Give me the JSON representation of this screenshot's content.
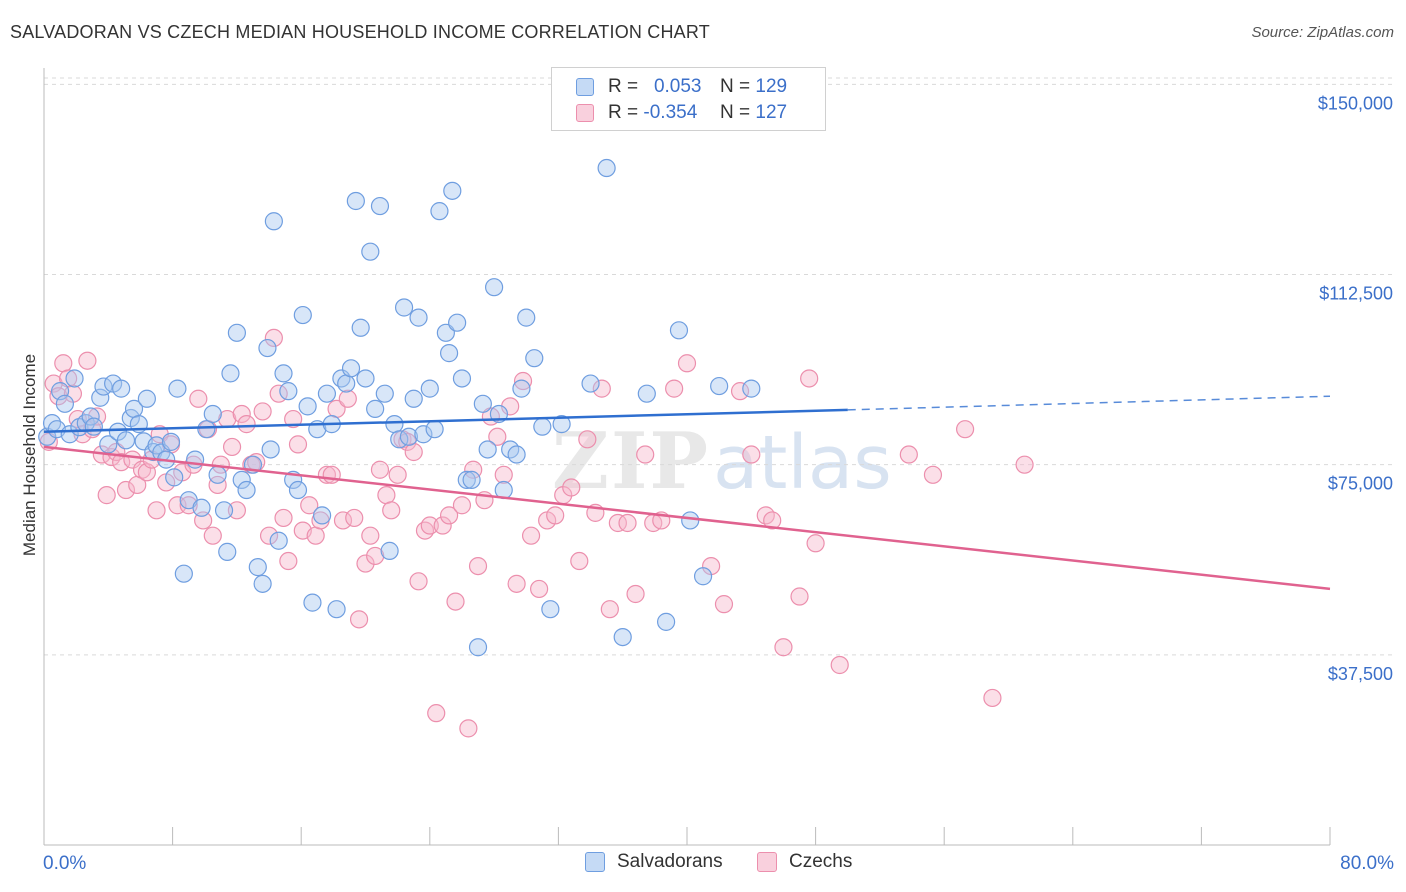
{
  "header": {
    "title": "SALVADORAN VS CZECH MEDIAN HOUSEHOLD INCOME CORRELATION CHART",
    "source": "Source: ZipAtlas.com"
  },
  "legend": {
    "rows": [
      {
        "r_label": "R =",
        "r_value": "0.053",
        "n_label": "N =",
        "n_value": "129"
      },
      {
        "r_label": "R =",
        "r_value": "-0.354",
        "n_label": "N =",
        "n_value": "127"
      }
    ]
  },
  "colors": {
    "salvadorans_fill": "#a9c8f0",
    "salvadorans_stroke": "#6f9ee0",
    "salvadorans_line": "#2f6fd0",
    "czechs_fill": "#f6b9cc",
    "czechs_stroke": "#ec8fad",
    "czechs_line": "#e0628f",
    "tick_text": "#3b6fc9",
    "grid": "#d9d9d9"
  },
  "chart_data": {
    "type": "scatter",
    "title": "SALVADORAN VS CZECH MEDIAN HOUSEHOLD INCOME CORRELATION CHART",
    "xlabel": "",
    "ylabel": "Median Household Income",
    "xlim": [
      0,
      80
    ],
    "ylim": [
      0,
      155000
    ],
    "x_tick_labels": [
      "0.0%",
      "80.0%"
    ],
    "y_ticks": [
      {
        "value": 37500,
        "label": "$37,500"
      },
      {
        "value": 75000,
        "label": "$75,000"
      },
      {
        "value": 112500,
        "label": "$112,500"
      },
      {
        "value": 150000,
        "label": "$150,000"
      }
    ],
    "grid": true,
    "legend_position": "top-center",
    "watermark": "ZIPatlas",
    "series": [
      {
        "name": "Salvadorans",
        "r": 0.053,
        "n": 129,
        "trend": {
          "x0": 0,
          "y0": 81500,
          "x1": 50,
          "y1": 85800,
          "dashed_to_x": 80,
          "dashed_to_y": 88500
        },
        "points": [
          [
            0.2,
            80.5
          ],
          [
            0.5,
            83.2
          ],
          [
            0.8,
            82.0
          ],
          [
            1.0,
            89.5
          ],
          [
            1.3,
            87.0
          ],
          [
            1.6,
            81.0
          ],
          [
            1.9,
            92.0
          ],
          [
            2.2,
            82.4
          ],
          [
            2.6,
            83.2
          ],
          [
            2.9,
            84.5
          ],
          [
            3.1,
            82.5
          ],
          [
            3.5,
            88.2
          ],
          [
            3.7,
            90.4
          ],
          [
            4.0,
            79.0
          ],
          [
            4.3,
            91.0
          ],
          [
            4.6,
            81.5
          ],
          [
            4.8,
            90.0
          ],
          [
            5.1,
            79.8
          ],
          [
            5.4,
            84.2
          ],
          [
            5.6,
            86.0
          ],
          [
            5.9,
            83.0
          ],
          [
            6.2,
            79.6
          ],
          [
            6.4,
            88.0
          ],
          [
            6.8,
            77.5
          ],
          [
            7.0,
            78.8
          ],
          [
            7.3,
            77.4
          ],
          [
            7.6,
            76.0
          ],
          [
            7.9,
            79.5
          ],
          [
            8.1,
            72.5
          ],
          [
            8.3,
            90.0
          ],
          [
            8.7,
            53.5
          ],
          [
            9.0,
            68.0
          ],
          [
            9.4,
            76.0
          ],
          [
            9.8,
            66.5
          ],
          [
            10.1,
            82.0
          ],
          [
            10.5,
            85.0
          ],
          [
            10.8,
            73.0
          ],
          [
            11.2,
            66.0
          ],
          [
            11.4,
            57.8
          ],
          [
            11.6,
            93.0
          ],
          [
            12.0,
            101.0
          ],
          [
            12.3,
            72.0
          ],
          [
            12.6,
            70.0
          ],
          [
            13.0,
            75.0
          ],
          [
            13.3,
            54.8
          ],
          [
            13.6,
            51.5
          ],
          [
            13.9,
            98.0
          ],
          [
            14.1,
            78.0
          ],
          [
            14.3,
            123.0
          ],
          [
            14.6,
            60.0
          ],
          [
            14.9,
            93.0
          ],
          [
            15.2,
            89.5
          ],
          [
            15.5,
            72.0
          ],
          [
            15.8,
            70.0
          ],
          [
            16.1,
            104.5
          ],
          [
            16.4,
            86.5
          ],
          [
            16.7,
            47.8
          ],
          [
            17.0,
            82.0
          ],
          [
            17.3,
            65.0
          ],
          [
            17.6,
            89.0
          ],
          [
            17.9,
            83.0
          ],
          [
            18.2,
            46.5
          ],
          [
            18.5,
            92.0
          ],
          [
            18.8,
            91.0
          ],
          [
            19.1,
            94.0
          ],
          [
            19.4,
            127.0
          ],
          [
            19.7,
            102.0
          ],
          [
            20.0,
            92.0
          ],
          [
            20.3,
            117.0
          ],
          [
            20.6,
            86.0
          ],
          [
            20.9,
            126.0
          ],
          [
            21.2,
            89.0
          ],
          [
            21.5,
            58.0
          ],
          [
            21.8,
            83.0
          ],
          [
            22.1,
            80.0
          ],
          [
            22.4,
            106.0
          ],
          [
            22.7,
            80.5
          ],
          [
            23.0,
            88.0
          ],
          [
            23.3,
            104.0
          ],
          [
            23.6,
            81.0
          ],
          [
            24.0,
            90.0
          ],
          [
            24.3,
            82.0
          ],
          [
            24.6,
            125.0
          ],
          [
            25.0,
            101.0
          ],
          [
            25.2,
            97.0
          ],
          [
            25.4,
            129.0
          ],
          [
            25.7,
            103.0
          ],
          [
            26.0,
            92.0
          ],
          [
            26.3,
            72.0
          ],
          [
            26.6,
            72.0
          ],
          [
            27.0,
            39.0
          ],
          [
            27.3,
            87.0
          ],
          [
            27.6,
            78.0
          ],
          [
            28.0,
            110.0
          ],
          [
            28.3,
            85.0
          ],
          [
            28.6,
            70.0
          ],
          [
            29.0,
            78.0
          ],
          [
            29.4,
            77.0
          ],
          [
            29.7,
            90.0
          ],
          [
            30.0,
            104.0
          ],
          [
            30.5,
            96.0
          ],
          [
            31.0,
            82.5
          ],
          [
            31.5,
            46.5
          ],
          [
            32.2,
            83.0
          ],
          [
            34.0,
            91.0
          ],
          [
            35.0,
            133.5
          ],
          [
            36.0,
            41.0
          ],
          [
            37.5,
            89.0
          ],
          [
            38.7,
            44.0
          ],
          [
            39.5,
            101.5
          ],
          [
            40.2,
            64.0
          ],
          [
            41.0,
            53.0
          ],
          [
            42.0,
            90.5
          ],
          [
            44.0,
            90.0
          ]
        ]
      },
      {
        "name": "Czechs",
        "r": -0.354,
        "n": 127,
        "trend": {
          "x0": 0,
          "y0": 78500,
          "x1": 80,
          "y1": 50500
        },
        "points": [
          [
            0.3,
            79.5
          ],
          [
            0.6,
            91.0
          ],
          [
            0.9,
            88.5
          ],
          [
            1.2,
            95.0
          ],
          [
            1.5,
            92.0
          ],
          [
            1.8,
            89.0
          ],
          [
            2.1,
            84.0
          ],
          [
            2.4,
            81.0
          ],
          [
            2.7,
            95.5
          ],
          [
            3.0,
            82.0
          ],
          [
            3.3,
            84.5
          ],
          [
            3.6,
            77.0
          ],
          [
            3.9,
            69.0
          ],
          [
            4.2,
            76.5
          ],
          [
            4.5,
            77.5
          ],
          [
            4.8,
            75.5
          ],
          [
            5.1,
            70.0
          ],
          [
            5.5,
            76.0
          ],
          [
            5.8,
            71.0
          ],
          [
            6.1,
            74.0
          ],
          [
            6.4,
            73.5
          ],
          [
            6.7,
            76.0
          ],
          [
            7.0,
            66.0
          ],
          [
            7.2,
            81.0
          ],
          [
            7.6,
            71.5
          ],
          [
            7.9,
            79.0
          ],
          [
            8.3,
            67.0
          ],
          [
            8.6,
            73.5
          ],
          [
            9.0,
            67.0
          ],
          [
            9.3,
            75.0
          ],
          [
            9.6,
            88.0
          ],
          [
            9.9,
            64.0
          ],
          [
            10.2,
            82.0
          ],
          [
            10.5,
            61.0
          ],
          [
            10.8,
            71.0
          ],
          [
            11.0,
            75.0
          ],
          [
            11.4,
            84.0
          ],
          [
            11.7,
            78.5
          ],
          [
            12.0,
            66.0
          ],
          [
            12.3,
            85.0
          ],
          [
            12.6,
            83.0
          ],
          [
            12.9,
            75.0
          ],
          [
            13.2,
            75.5
          ],
          [
            13.6,
            85.5
          ],
          [
            14.0,
            61.0
          ],
          [
            14.3,
            100.0
          ],
          [
            14.6,
            89.0
          ],
          [
            14.9,
            64.5
          ],
          [
            15.2,
            56.0
          ],
          [
            15.5,
            84.0
          ],
          [
            15.8,
            79.0
          ],
          [
            16.1,
            62.0
          ],
          [
            16.5,
            67.0
          ],
          [
            16.9,
            61.0
          ],
          [
            17.2,
            64.0
          ],
          [
            17.6,
            73.0
          ],
          [
            17.9,
            73.0
          ],
          [
            18.2,
            86.0
          ],
          [
            18.6,
            64.0
          ],
          [
            18.9,
            88.0
          ],
          [
            19.3,
            64.5
          ],
          [
            19.6,
            44.5
          ],
          [
            20.0,
            55.5
          ],
          [
            20.3,
            61.0
          ],
          [
            20.6,
            57.0
          ],
          [
            20.9,
            74.0
          ],
          [
            21.3,
            69.0
          ],
          [
            21.6,
            66.0
          ],
          [
            22.0,
            73.0
          ],
          [
            22.3,
            80.0
          ],
          [
            22.6,
            79.5
          ],
          [
            23.0,
            77.5
          ],
          [
            23.3,
            52.0
          ],
          [
            23.7,
            62.0
          ],
          [
            24.0,
            63.0
          ],
          [
            24.4,
            26.0
          ],
          [
            24.8,
            63.0
          ],
          [
            25.2,
            65.0
          ],
          [
            25.6,
            48.0
          ],
          [
            26.0,
            67.0
          ],
          [
            26.4,
            23.0
          ],
          [
            26.7,
            74.0
          ],
          [
            27.0,
            55.0
          ],
          [
            27.4,
            68.0
          ],
          [
            27.8,
            84.5
          ],
          [
            28.2,
            80.5
          ],
          [
            28.6,
            73.0
          ],
          [
            29.0,
            86.5
          ],
          [
            29.4,
            51.5
          ],
          [
            29.8,
            91.5
          ],
          [
            30.3,
            61.0
          ],
          [
            30.8,
            50.5
          ],
          [
            31.3,
            64.0
          ],
          [
            31.8,
            65.0
          ],
          [
            32.3,
            69.0
          ],
          [
            32.8,
            70.5
          ],
          [
            33.3,
            56.0
          ],
          [
            33.8,
            80.0
          ],
          [
            34.3,
            65.5
          ],
          [
            34.7,
            90.0
          ],
          [
            35.2,
            46.5
          ],
          [
            35.7,
            63.5
          ],
          [
            36.3,
            63.5
          ],
          [
            36.8,
            49.5
          ],
          [
            37.4,
            77.0
          ],
          [
            37.9,
            63.5
          ],
          [
            38.4,
            64.0
          ],
          [
            39.2,
            90.0
          ],
          [
            40.0,
            95.0
          ],
          [
            41.5,
            55.0
          ],
          [
            42.3,
            47.5
          ],
          [
            43.3,
            89.5
          ],
          [
            44.0,
            77.0
          ],
          [
            44.9,
            65.0
          ],
          [
            45.3,
            64.0
          ],
          [
            46.0,
            39.0
          ],
          [
            47.0,
            49.0
          ],
          [
            47.6,
            92.0
          ],
          [
            48.0,
            59.5
          ],
          [
            49.5,
            35.5
          ],
          [
            53.8,
            77.0
          ],
          [
            55.3,
            73.0
          ],
          [
            57.3,
            82.0
          ],
          [
            59.0,
            29.0
          ],
          [
            61.0,
            75.0
          ]
        ]
      }
    ]
  }
}
